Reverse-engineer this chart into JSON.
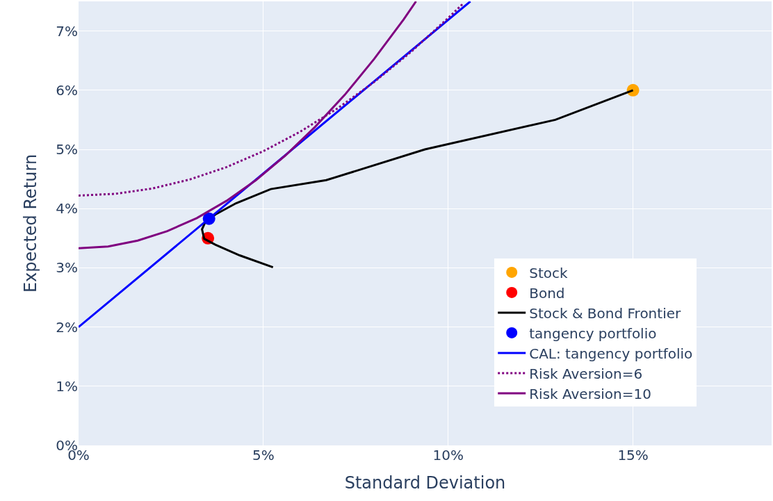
{
  "chart_data": {
    "type": "line",
    "xlabel": "Standard Deviation",
    "ylabel": "Expected Return",
    "xlim": [
      0,
      18.75
    ],
    "ylim": [
      0,
      7.5
    ],
    "xticks": [
      {
        "value": 0,
        "label": "0%"
      },
      {
        "value": 5,
        "label": "5%"
      },
      {
        "value": 10,
        "label": "10%"
      },
      {
        "value": 15,
        "label": "15%"
      }
    ],
    "yticks": [
      {
        "value": 0,
        "label": "0%"
      },
      {
        "value": 1,
        "label": "1%"
      },
      {
        "value": 2,
        "label": "2%"
      },
      {
        "value": 3,
        "label": "3%"
      },
      {
        "value": 4,
        "label": "4%"
      },
      {
        "value": 5,
        "label": "5%"
      },
      {
        "value": 6,
        "label": "6%"
      },
      {
        "value": 7,
        "label": "7%"
      }
    ],
    "grid": true,
    "legend": "bottom right",
    "series": [
      {
        "name": "Stock",
        "type": "scatter",
        "marker": "circle",
        "color": "#ffa500",
        "x": [
          15
        ],
        "values": [
          6
        ]
      },
      {
        "name": "Bond",
        "type": "scatter",
        "marker": "circle",
        "color": "#ff0000",
        "x": [
          3.5
        ],
        "values": [
          3.5
        ]
      },
      {
        "name": "Stock & Bond Frontier",
        "type": "line",
        "line_style": "solid",
        "color": "#000000",
        "x": [
          15,
          12.9,
          9.37,
          6.7,
          5.2,
          4.26,
          3.7,
          3.42,
          3.34,
          3.4,
          3.7,
          4.36,
          5.26
        ],
        "values": [
          6,
          5.5,
          5,
          4.48,
          4.33,
          4.09,
          3.9,
          3.76,
          3.65,
          3.49,
          3.39,
          3.21,
          3.01
        ]
      },
      {
        "name": "tangency portfolio",
        "type": "scatter",
        "marker": "circle",
        "color": "#0000ff",
        "x": [
          3.53
        ],
        "values": [
          3.83
        ]
      },
      {
        "name": "CAL: tangency portfolio",
        "type": "line",
        "line_style": "solid",
        "color": "#0000ff",
        "x": [
          0,
          10.6
        ],
        "values": [
          2,
          7.5
        ]
      },
      {
        "name": "Risk Aversion=6",
        "type": "line",
        "line_style": "dotted",
        "color": "#800080",
        "x": [
          0,
          1,
          2,
          3,
          4,
          5,
          6,
          7,
          8,
          9,
          10,
          10.4
        ],
        "values": [
          4.22,
          4.25,
          4.34,
          4.49,
          4.7,
          4.97,
          5.3,
          5.69,
          6.14,
          6.65,
          7.22,
          7.46
        ]
      },
      {
        "name": "Risk Aversion=10",
        "type": "line",
        "line_style": "solid",
        "color": "#800080",
        "x": [
          0,
          0.8,
          1.6,
          2.4,
          3.2,
          4,
          4.8,
          5.6,
          6.4,
          7.2,
          8,
          8.8,
          9.13
        ],
        "values": [
          3.33,
          3.36,
          3.46,
          3.62,
          3.84,
          4.13,
          4.48,
          4.9,
          5.38,
          5.92,
          6.53,
          7.2,
          7.5
        ]
      }
    ]
  }
}
